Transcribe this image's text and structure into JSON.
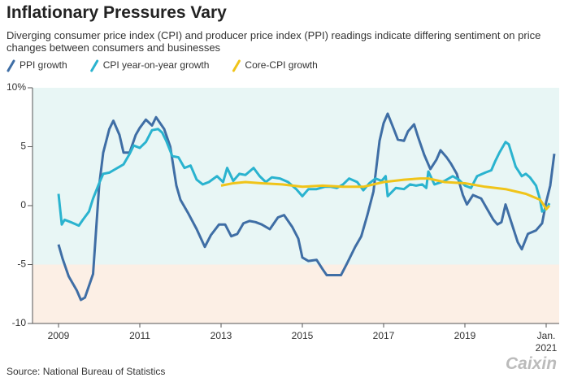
{
  "chart_data": {
    "type": "line",
    "title": "Inflationary Pressures Vary",
    "subtitle": "Diverging consumer price index (CPI) and producer price index (PPI) readings indicate differing sentiment on price changes between consumers and businesses",
    "source": "Source: National Bureau of Statistics",
    "logo": "Caixin",
    "xlim": [
      2008.36,
      2021.32
    ],
    "ylim": [
      -10,
      10
    ],
    "xticks": [
      2009,
      2011,
      2013,
      2015,
      2017,
      2019,
      {
        "value": 2021,
        "label": "Jan. 2021"
      }
    ],
    "yticks": [
      {
        "value": 10,
        "label": "10%"
      },
      5,
      0,
      -5,
      -10
    ],
    "legend": "top-left",
    "series": [
      {
        "name": "PPI growth",
        "color": "#3f6ea5",
        "x": [
          2009.0,
          2009.1,
          2009.25,
          2009.45,
          2009.55,
          2009.65,
          2009.85,
          2010.0,
          2010.1,
          2010.25,
          2010.35,
          2010.5,
          2010.6,
          2010.75,
          2010.9,
          2011.0,
          2011.15,
          2011.3,
          2011.4,
          2011.5,
          2011.6,
          2011.75,
          2011.9,
          2012.0,
          2012.2,
          2012.4,
          2012.6,
          2012.75,
          2012.95,
          2013.1,
          2013.25,
          2013.4,
          2013.55,
          2013.7,
          2013.85,
          2014.0,
          2014.2,
          2014.4,
          2014.55,
          2014.75,
          2014.9,
          2015.0,
          2015.15,
          2015.35,
          2015.5,
          2015.6,
          2015.8,
          2015.95,
          2016.1,
          2016.3,
          2016.45,
          2016.6,
          2016.75,
          2016.9,
          2017.0,
          2017.1,
          2017.25,
          2017.35,
          2017.5,
          2017.6,
          2017.75,
          2017.85,
          2018.0,
          2018.15,
          2018.3,
          2018.4,
          2018.55,
          2018.65,
          2018.8,
          2018.95,
          2019.05,
          2019.2,
          2019.4,
          2019.55,
          2019.7,
          2019.8,
          2019.9,
          2020.0,
          2020.15,
          2020.3,
          2020.4,
          2020.55,
          2020.75,
          2020.9,
          2021.0,
          2021.1,
          2021.2
        ],
        "values": [
          -3.3,
          -4.5,
          -6.0,
          -7.2,
          -8.0,
          -7.8,
          -5.8,
          1.7,
          4.5,
          6.5,
          7.2,
          6.0,
          4.5,
          4.5,
          6.0,
          6.6,
          7.3,
          6.8,
          7.5,
          7.0,
          6.5,
          5.0,
          1.7,
          0.5,
          -0.7,
          -2.0,
          -3.5,
          -2.5,
          -1.6,
          -1.6,
          -2.6,
          -2.4,
          -1.5,
          -1.3,
          -1.4,
          -1.6,
          -2.0,
          -1.0,
          -0.8,
          -1.8,
          -2.8,
          -4.4,
          -4.7,
          -4.6,
          -5.4,
          -5.9,
          -5.9,
          -5.9,
          -4.9,
          -3.5,
          -2.6,
          -0.8,
          1.2,
          5.5,
          7.0,
          7.8,
          6.5,
          5.6,
          5.5,
          6.3,
          6.9,
          5.8,
          4.3,
          3.1,
          3.9,
          4.7,
          4.1,
          3.6,
          2.7,
          0.9,
          0.1,
          0.9,
          0.6,
          -0.3,
          -1.2,
          -1.6,
          -1.4,
          0.1,
          -1.5,
          -3.1,
          -3.7,
          -2.4,
          -2.1,
          -1.5,
          0.3,
          1.7,
          4.4
        ]
      },
      {
        "name": "CPI year-on-year growth",
        "color": "#2ab3cf",
        "x": [
          2009.0,
          2009.08,
          2009.15,
          2009.3,
          2009.5,
          2009.6,
          2009.75,
          2009.85,
          2010.0,
          2010.1,
          2010.25,
          2010.35,
          2010.5,
          2010.6,
          2010.75,
          2010.85,
          2011.0,
          2011.15,
          2011.3,
          2011.45,
          2011.55,
          2011.65,
          2011.8,
          2011.95,
          2012.1,
          2012.25,
          2012.4,
          2012.55,
          2012.7,
          2012.9,
          2013.05,
          2013.15,
          2013.3,
          2013.45,
          2013.6,
          2013.8,
          2013.95,
          2014.1,
          2014.25,
          2014.45,
          2014.65,
          2014.85,
          2015.0,
          2015.15,
          2015.35,
          2015.55,
          2015.7,
          2015.85,
          2016.0,
          2016.15,
          2016.35,
          2016.5,
          2016.65,
          2016.8,
          2016.95,
          2017.05,
          2017.1,
          2017.3,
          2017.5,
          2017.65,
          2017.8,
          2017.95,
          2018.05,
          2018.1,
          2018.25,
          2018.5,
          2018.7,
          2018.85,
          2019.0,
          2019.15,
          2019.3,
          2019.5,
          2019.65,
          2019.75,
          2019.85,
          2020.0,
          2020.08,
          2020.25,
          2020.4,
          2020.5,
          2020.6,
          2020.75,
          2020.85,
          2020.9,
          2021.0,
          2021.08
        ],
        "values": [
          1.0,
          -1.6,
          -1.2,
          -1.4,
          -1.7,
          -1.2,
          -0.5,
          0.6,
          1.9,
          2.7,
          2.8,
          3.0,
          3.3,
          3.5,
          4.4,
          5.1,
          4.9,
          5.4,
          6.4,
          6.5,
          6.2,
          5.5,
          4.2,
          4.1,
          3.2,
          3.4,
          2.2,
          1.8,
          2.0,
          2.5,
          2.0,
          3.2,
          2.1,
          2.7,
          2.6,
          3.2,
          2.5,
          2.0,
          2.4,
          2.3,
          2.0,
          1.4,
          0.8,
          1.4,
          1.4,
          1.6,
          1.6,
          1.5,
          1.8,
          2.3,
          2.0,
          1.3,
          1.9,
          2.3,
          2.1,
          2.5,
          0.8,
          1.5,
          1.4,
          1.8,
          1.7,
          1.8,
          1.5,
          2.9,
          1.8,
          2.1,
          2.5,
          2.2,
          1.7,
          1.5,
          2.5,
          2.8,
          3.0,
          3.8,
          4.5,
          5.4,
          5.2,
          3.3,
          2.5,
          2.7,
          2.4,
          1.7,
          0.5,
          -0.5,
          -0.3,
          0.2
        ]
      },
      {
        "name": "Core-CPI growth",
        "color": "#f0c419",
        "x": [
          2013.0,
          2013.3,
          2013.6,
          2014.0,
          2014.5,
          2015.0,
          2015.5,
          2016.0,
          2016.5,
          2017.0,
          2017.5,
          2017.9,
          2018.1,
          2018.5,
          2019.0,
          2019.5,
          2020.0,
          2020.5,
          2020.85,
          2020.95,
          2021.0,
          2021.08
        ],
        "values": [
          1.7,
          1.9,
          2.0,
          1.9,
          1.8,
          1.6,
          1.7,
          1.6,
          1.6,
          2.0,
          2.2,
          2.3,
          2.3,
          2.0,
          1.9,
          1.6,
          1.4,
          1.0,
          0.5,
          0.0,
          -0.3,
          0.0
        ]
      }
    ]
  }
}
